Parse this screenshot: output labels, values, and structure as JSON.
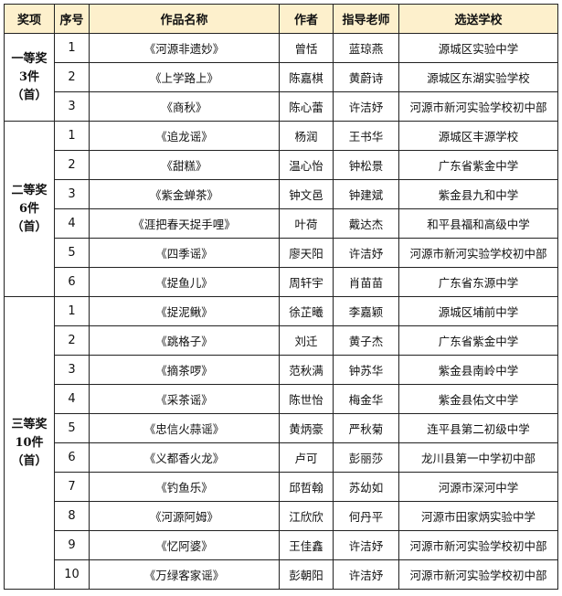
{
  "headers": [
    "奖项",
    "序号",
    "作品名称",
    "作者",
    "指导老师",
    "选送学校"
  ],
  "colors": {
    "header_bg": "#fdf0cc",
    "border": "#222222"
  },
  "groups": [
    {
      "award": [
        "一等奖",
        "3件",
        "（首）"
      ],
      "rows": [
        {
          "no": "1",
          "title": "《河源非遗妙》",
          "author": "曾恬",
          "teacher": "蓝琼燕",
          "school": "源城区实验中学"
        },
        {
          "no": "2",
          "title": "《上学路上》",
          "author": "陈嘉棋",
          "teacher": "黄蔚诗",
          "school": "源城区东湖实验学校"
        },
        {
          "no": "3",
          "title": "《商秋》",
          "author": "陈心蕾",
          "teacher": "许洁妤",
          "school": "河源市新河实验学校初中部"
        }
      ]
    },
    {
      "award": [
        "二等奖",
        "6件",
        "（首）"
      ],
      "rows": [
        {
          "no": "1",
          "title": "《追龙谣》",
          "author": "杨润",
          "teacher": "王书华",
          "school": "源城区丰源学校"
        },
        {
          "no": "2",
          "title": "《甜糕》",
          "author": "温心怡",
          "teacher": "钟松景",
          "school": "广东省紫金中学"
        },
        {
          "no": "3",
          "title": "《紫金蝉茶》",
          "author": "钟文邑",
          "teacher": "钟建斌",
          "school": "紫金县九和中学"
        },
        {
          "no": "4",
          "title": "《涯把春天捉手哩》",
          "author": "叶荷",
          "teacher": "戴达杰",
          "school": "和平县福和高级中学"
        },
        {
          "no": "5",
          "title": "《四季谣》",
          "author": "廖天阳",
          "teacher": "许洁妤",
          "school": "河源市新河实验学校初中部"
        },
        {
          "no": "6",
          "title": "《捉鱼儿》",
          "author": "周轩宇",
          "teacher": "肖苗苗",
          "school": "广东省东源中学"
        }
      ]
    },
    {
      "award": [
        "三等奖",
        "10件",
        "（首）"
      ],
      "rows": [
        {
          "no": "1",
          "title": "《捉泥鳅》",
          "author": "徐芷曦",
          "teacher": "李嘉颖",
          "school": "源城区埔前中学"
        },
        {
          "no": "2",
          "title": "《跳格子》",
          "author": "刘迁",
          "teacher": "黄子杰",
          "school": "广东省紫金中学"
        },
        {
          "no": "3",
          "title": "《摘茶啰》",
          "author": "范秋满",
          "teacher": "钟苏华",
          "school": "紫金县南岭中学"
        },
        {
          "no": "4",
          "title": "《采茶谣》",
          "author": "陈世怡",
          "teacher": "梅金华",
          "school": "紫金县佑文中学"
        },
        {
          "no": "5",
          "title": "《忠信火蒜谣》",
          "author": "黄炳豪",
          "teacher": "严秋菊",
          "school": "连平县第二初级中学"
        },
        {
          "no": "6",
          "title": "《义都香火龙》",
          "author": "卢可",
          "teacher": "彭丽莎",
          "school": "龙川县第一中学初中部"
        },
        {
          "no": "7",
          "title": "《钓鱼乐》",
          "author": "邱哲翰",
          "teacher": "苏幼如",
          "school": "河源市深河中学"
        },
        {
          "no": "8",
          "title": "《河源阿姆》",
          "author": "江欣欣",
          "teacher": "何丹平",
          "school": "河源市田家炳实验中学"
        },
        {
          "no": "9",
          "title": "《忆阿婆》",
          "author": "王佳鑫",
          "teacher": "许洁妤",
          "school": "河源市新河实验学校初中部"
        },
        {
          "no": "10",
          "title": "《万绿客家谣》",
          "author": "彭朝阳",
          "teacher": "许洁妤",
          "school": "河源市新河实验学校初中部"
        }
      ]
    }
  ]
}
